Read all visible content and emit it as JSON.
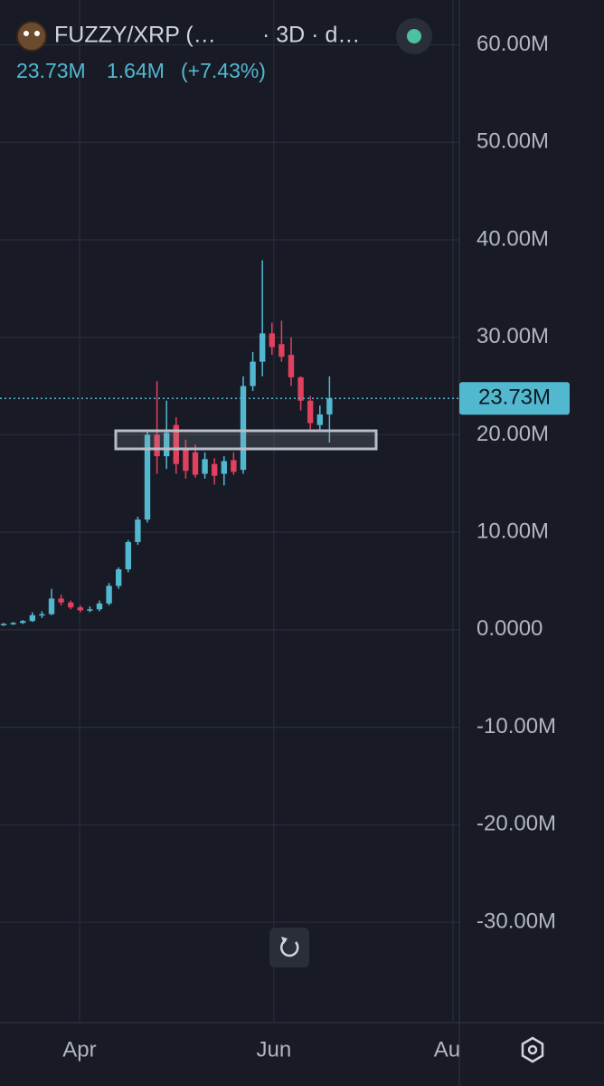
{
  "chart_data": {
    "type": "candlestick",
    "symbol": "FUZZY/XRP (…",
    "interval": "· 3D · d…",
    "header_values": [
      "23.73M",
      "1.64M",
      "(+7.43%)"
    ],
    "last_price": {
      "value": 23.73,
      "label": "23.73M"
    },
    "up_color": "#52b8d0",
    "down_color": "#e0415f",
    "open": [
      0.5,
      0.6,
      0.7,
      0.9,
      1.5,
      1.6,
      3.2,
      2.8,
      2.3,
      2.0,
      2.1,
      2.7,
      4.5,
      6.2,
      9.0,
      11.3,
      20.0,
      17.8,
      21.0,
      18.6,
      18.2,
      16.0,
      17.0,
      16.0,
      17.4,
      16.4,
      25.0,
      27.5,
      30.4,
      29.3,
      28.2,
      25.9,
      23.5,
      21.0,
      22.09
    ],
    "high": [
      0.7,
      0.8,
      1.0,
      1.8,
      1.9,
      4.2,
      3.6,
      3.0,
      2.5,
      2.4,
      3.0,
      4.8,
      6.4,
      9.2,
      11.6,
      20.3,
      25.5,
      23.5,
      21.8,
      19.5,
      19.0,
      18.2,
      17.6,
      17.8,
      18.2,
      26.0,
      28.5,
      37.9,
      31.5,
      31.7,
      30.0,
      26.0,
      24.0,
      23.0,
      26.0
    ],
    "low": [
      0.4,
      0.5,
      0.6,
      0.8,
      1.2,
      1.5,
      2.5,
      2.1,
      1.8,
      1.8,
      1.9,
      2.5,
      4.2,
      5.9,
      8.7,
      11.0,
      16.0,
      16.5,
      16.0,
      15.5,
      15.6,
      15.5,
      14.9,
      14.8,
      15.9,
      16.0,
      24.5,
      26.0,
      28.2,
      27.5,
      25.0,
      22.5,
      20.3,
      20.4,
      19.2
    ],
    "close": [
      0.6,
      0.7,
      0.9,
      1.5,
      1.6,
      3.2,
      2.8,
      2.3,
      2.0,
      2.1,
      2.7,
      4.5,
      6.2,
      9.0,
      11.3,
      20.0,
      17.8,
      20.2,
      17.0,
      16.3,
      15.9,
      17.5,
      15.8,
      17.3,
      16.2,
      25.0,
      27.5,
      30.4,
      29.0,
      28.0,
      25.9,
      23.5,
      21.2,
      22.09,
      23.73
    ],
    "xlim": [
      -0.38,
      47.55
    ],
    "xticks": [
      {
        "value": 7.92,
        "label": "Apr"
      },
      {
        "value": 28.2,
        "label": "Jun"
      },
      {
        "value": 46.9,
        "label": "Aug"
      }
    ],
    "ylim": [
      -40.3,
      64.6
    ],
    "yticks": [
      {
        "value": 60,
        "label": "60.00M"
      },
      {
        "value": 50,
        "label": "50.00M"
      },
      {
        "value": 40,
        "label": "40.00M"
      },
      {
        "value": 30,
        "label": "30.00M"
      },
      {
        "value": 20,
        "label": "20.00M"
      },
      {
        "value": 10,
        "label": "10.00M"
      },
      {
        "value": 0,
        "label": "0.0000"
      },
      {
        "value": -10,
        "label": "-10.00M"
      },
      {
        "value": -20,
        "label": "-20.00M"
      },
      {
        "value": -30,
        "label": "-30.00M"
      }
    ],
    "grid": true
  }
}
